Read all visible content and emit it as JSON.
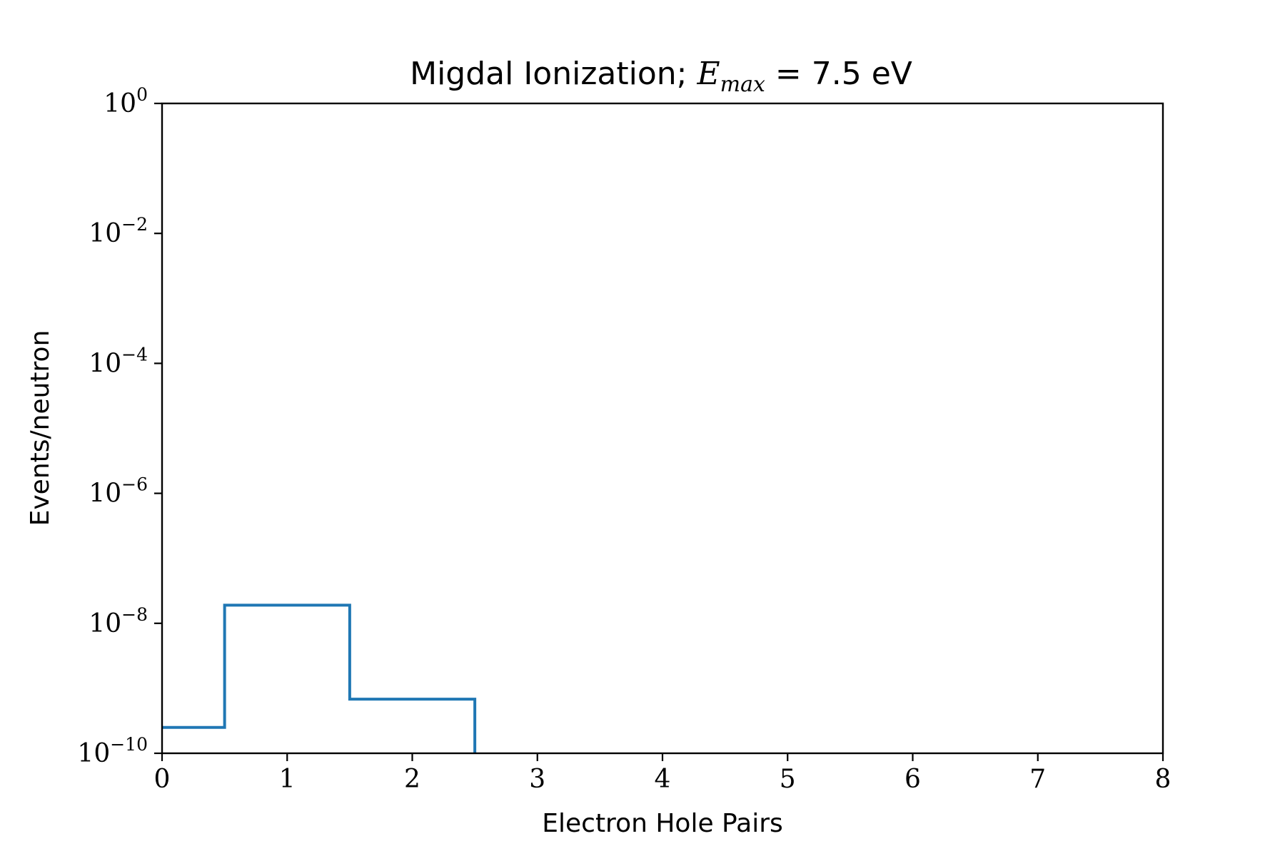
{
  "chart_data": {
    "type": "line",
    "step": "post",
    "title": {
      "text": "Migdal Ionization; ",
      "math_symbol": "E",
      "math_subscript": "max",
      "math_rest": " = 7.5 eV"
    },
    "xlabel": "Electron Hole Pairs",
    "ylabel": "Events/neutron",
    "xlim": [
      0,
      8
    ],
    "ylim": [
      1e-10,
      1
    ],
    "yscale": "log",
    "grid": false,
    "legend": "none",
    "xticks": [
      "0",
      "1",
      "2",
      "3",
      "4",
      "5",
      "6",
      "7",
      "8"
    ],
    "yticks": [
      {
        "base": "10",
        "exp": "0",
        "value": 1
      },
      {
        "base": "10",
        "exp": "−2",
        "value": 0.01
      },
      {
        "base": "10",
        "exp": "−4",
        "value": 0.0001
      },
      {
        "base": "10",
        "exp": "−6",
        "value": 1e-06
      },
      {
        "base": "10",
        "exp": "−8",
        "value": 1e-08
      },
      {
        "base": "10",
        "exp": "−10",
        "value": 1e-10
      }
    ],
    "series": [
      {
        "color": "#1f77b4",
        "steps": [
          {
            "x0": 0.0,
            "x1": 0.5,
            "y": 2.5e-10
          },
          {
            "x0": 0.5,
            "x1": 1.5,
            "y": 1.9e-08
          },
          {
            "x0": 1.5,
            "x1": 2.5,
            "y": 6.8e-10
          }
        ]
      }
    ]
  }
}
